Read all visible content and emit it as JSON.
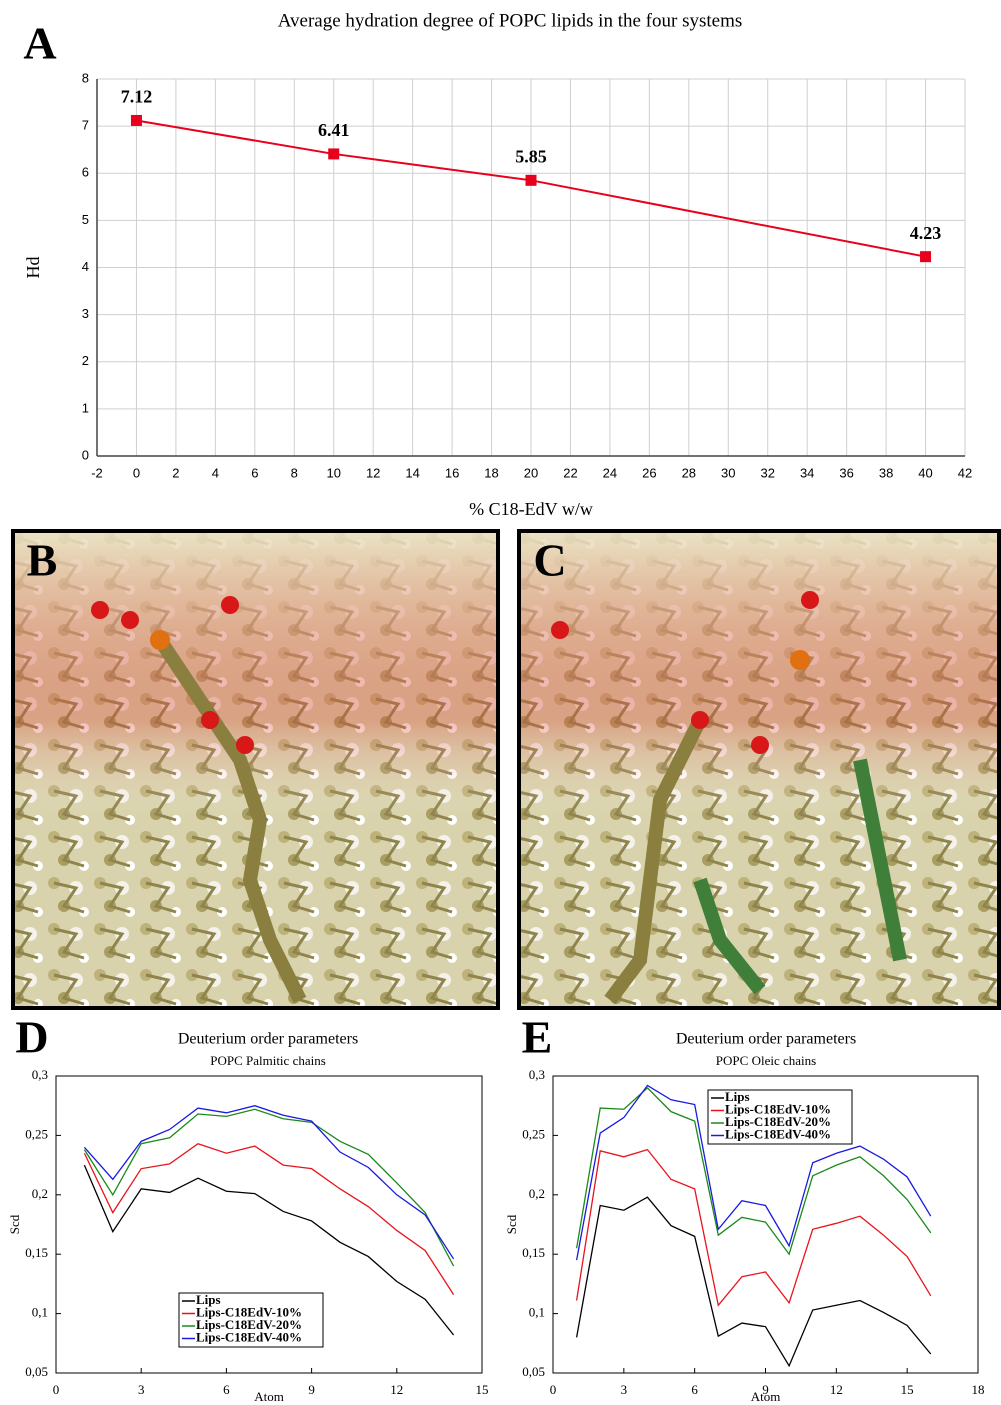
{
  "panel_labels": [
    "A",
    "B",
    "C",
    "D",
    "E"
  ],
  "chart_data": [
    {
      "type": "line",
      "title": "Average hydration degree of POPC lipids in the four systems",
      "x_label": "% C18-EdV w/w",
      "y_label": "Hd",
      "x": [
        0,
        10,
        20,
        40
      ],
      "series": [
        {
          "name": "Hd",
          "color": "#e8001c",
          "values": [
            7.12,
            6.41,
            5.85,
            4.23
          ]
        }
      ],
      "xlim": [
        -2,
        42
      ],
      "ylim": [
        0,
        8
      ],
      "xticks": [
        -2,
        0,
        2,
        4,
        6,
        8,
        10,
        12,
        14,
        16,
        18,
        20,
        22,
        24,
        26,
        28,
        30,
        32,
        34,
        36,
        38,
        40,
        42
      ],
      "yticks": [
        0,
        1,
        2,
        3,
        4,
        5,
        6,
        7,
        8
      ],
      "grid": true,
      "markers": "square",
      "data_labels": true
    },
    {
      "type": "line",
      "title": "Deuterium order parameters",
      "subtitle": "POPC Palmitic chains",
      "x_label": "Atom",
      "y_label": "Scd",
      "x": [
        1,
        2,
        3,
        4,
        5,
        6,
        7,
        8,
        9,
        10,
        11,
        12,
        13,
        14
      ],
      "series": [
        {
          "name": "Lips",
          "color": "#000000",
          "values": [
            0.225,
            0.169,
            0.205,
            0.202,
            0.214,
            0.203,
            0.201,
            0.186,
            0.178,
            0.16,
            0.148,
            0.127,
            0.112,
            0.082
          ]
        },
        {
          "name": "Lips-C18EdV-10%",
          "color": "#e8141c",
          "values": [
            0.235,
            0.185,
            0.222,
            0.226,
            0.243,
            0.235,
            0.241,
            0.225,
            0.222,
            0.205,
            0.19,
            0.17,
            0.153,
            0.116
          ]
        },
        {
          "name": "Lips-C18EdV-20%",
          "color": "#1a8a1a",
          "values": [
            0.238,
            0.2,
            0.243,
            0.248,
            0.268,
            0.266,
            0.272,
            0.264,
            0.261,
            0.245,
            0.234,
            0.21,
            0.185,
            0.14
          ]
        },
        {
          "name": "Lips-C18EdV-40%",
          "color": "#1a1ae0",
          "values": [
            0.24,
            0.213,
            0.245,
            0.255,
            0.273,
            0.269,
            0.275,
            0.267,
            0.262,
            0.236,
            0.223,
            0.2,
            0.183,
            0.146
          ]
        }
      ],
      "xlim": [
        0,
        15
      ],
      "ylim": [
        0.05,
        0.3
      ],
      "xticks": [
        0,
        3,
        6,
        9,
        12,
        15
      ],
      "yticks": [
        {
          "value": 0.05,
          "label": "0,05"
        },
        {
          "value": 0.1,
          "label": "0,1"
        },
        {
          "value": 0.15,
          "label": "0,15"
        },
        {
          "value": 0.2,
          "label": "0,2"
        },
        {
          "value": 0.25,
          "label": "0,25"
        },
        {
          "value": 0.3,
          "label": "0,3"
        }
      ],
      "grid": false,
      "legend": "lower center"
    },
    {
      "type": "line",
      "title": "Deuterium order parameters",
      "subtitle": "POPC Oleic chains",
      "x_label": "Atom",
      "y_label": "Scd",
      "x": [
        1,
        2,
        3,
        4,
        5,
        6,
        7,
        8,
        9,
        10,
        11,
        12,
        13,
        14,
        15,
        16
      ],
      "series": [
        {
          "name": "Lips",
          "color": "#000000",
          "values": [
            0.08,
            0.191,
            0.187,
            0.198,
            0.174,
            0.165,
            0.081,
            0.092,
            0.089,
            0.056,
            0.103,
            0.107,
            0.111,
            0.101,
            0.09,
            0.066
          ]
        },
        {
          "name": "Lips-C18EdV-10%",
          "color": "#e8141c",
          "values": [
            0.111,
            0.237,
            0.232,
            0.238,
            0.213,
            0.205,
            0.107,
            0.131,
            0.135,
            0.109,
            0.171,
            0.176,
            0.182,
            0.166,
            0.148,
            0.115
          ]
        },
        {
          "name": "Lips-C18EdV-20%",
          "color": "#1a8a1a",
          "values": [
            0.155,
            0.273,
            0.272,
            0.29,
            0.27,
            0.262,
            0.166,
            0.181,
            0.177,
            0.15,
            0.216,
            0.225,
            0.232,
            0.216,
            0.196,
            0.168
          ]
        },
        {
          "name": "Lips-C18EdV-40%",
          "color": "#1a1ae0",
          "values": [
            0.145,
            0.252,
            0.265,
            0.292,
            0.28,
            0.276,
            0.171,
            0.195,
            0.191,
            0.157,
            0.227,
            0.235,
            0.241,
            0.23,
            0.215,
            0.182
          ]
        }
      ],
      "xlim": [
        0,
        18
      ],
      "ylim": [
        0.05,
        0.3
      ],
      "xticks": [
        0,
        3,
        6,
        9,
        12,
        15,
        18
      ],
      "yticks": [
        {
          "value": 0.05,
          "label": "0,05"
        },
        {
          "value": 0.1,
          "label": "0,1"
        },
        {
          "value": 0.15,
          "label": "0,15"
        },
        {
          "value": 0.2,
          "label": "0,2"
        },
        {
          "value": 0.25,
          "label": "0,25"
        },
        {
          "value": 0.3,
          "label": "0,3"
        }
      ],
      "grid": false,
      "legend": "upper left"
    }
  ]
}
